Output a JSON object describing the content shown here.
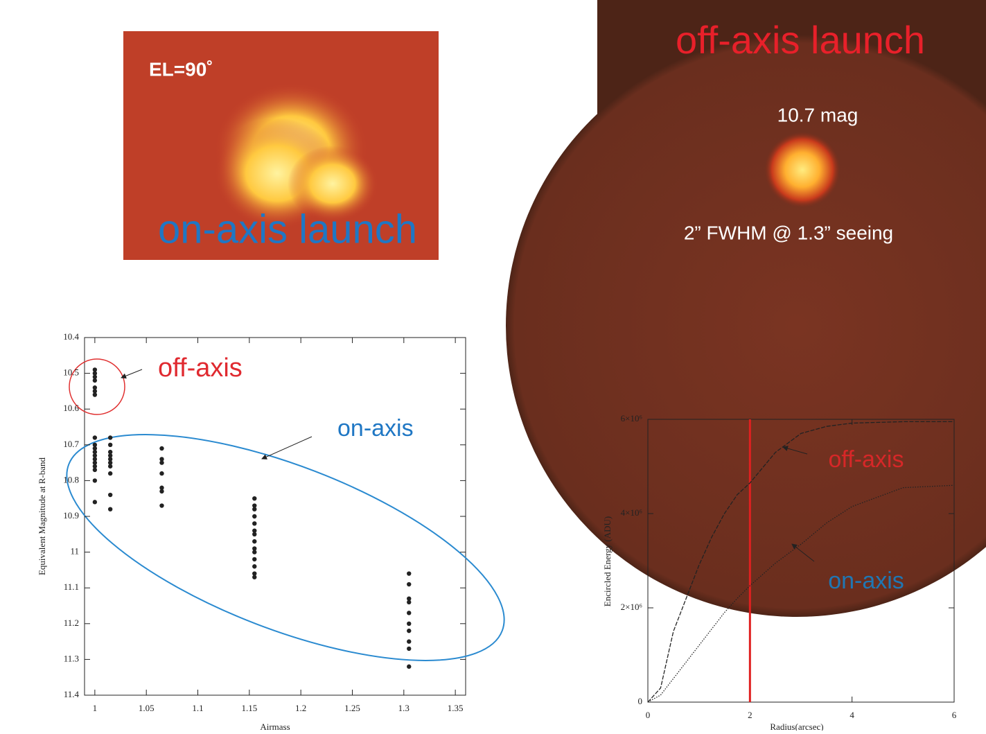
{
  "slide": {
    "image_left": {
      "label": "EL=90˚",
      "caption": "on-axis launch"
    },
    "image_right": {
      "caption": "off-axis launch",
      "magnitude": "10.7 mag",
      "fwhm": "2” FWHM @ 1.3” seeing"
    }
  },
  "chart_data": [
    {
      "type": "scatter",
      "x_label": "Airmass",
      "y_label": "Equivalent Magnitude at R-band",
      "color": "#222222",
      "annotations": [
        "off-axis",
        "on-axis"
      ],
      "x": [
        1,
        1,
        1,
        1,
        1,
        1,
        1,
        1,
        1,
        1,
        1,
        1,
        1,
        1,
        1,
        1,
        1,
        1,
        1.015,
        1.015,
        1.015,
        1.015,
        1.015,
        1.015,
        1.015,
        1.015,
        1.015,
        1.015,
        1.065,
        1.065,
        1.065,
        1.065,
        1.065,
        1.065,
        1.065,
        1.155,
        1.155,
        1.155,
        1.155,
        1.155,
        1.155,
        1.155,
        1.155,
        1.155,
        1.155,
        1.155,
        1.155,
        1.155,
        1.155,
        1.305,
        1.305,
        1.305,
        1.305,
        1.305,
        1.305,
        1.305,
        1.305,
        1.305,
        1.305
      ],
      "values": [
        10.49,
        10.5,
        10.51,
        10.52,
        10.54,
        10.55,
        10.56,
        10.68,
        10.7,
        10.71,
        10.72,
        10.73,
        10.74,
        10.75,
        10.76,
        10.77,
        10.8,
        10.86,
        10.68,
        10.7,
        10.72,
        10.73,
        10.74,
        10.75,
        10.76,
        10.78,
        10.84,
        10.88,
        10.71,
        10.74,
        10.75,
        10.78,
        10.82,
        10.83,
        10.87,
        10.85,
        10.87,
        10.88,
        10.9,
        10.92,
        10.94,
        10.95,
        10.97,
        10.99,
        11,
        11.02,
        11.04,
        11.06,
        11.07,
        11.06,
        11.09,
        11.13,
        11.14,
        11.17,
        11.2,
        11.22,
        11.25,
        11.27,
        11.32
      ],
      "xlim": [
        0.99,
        1.36
      ],
      "xticks": [
        1,
        1.05,
        1.1,
        1.15,
        1.2,
        1.25,
        1.3,
        1.35
      ],
      "ylim": [
        10.4,
        11.4
      ],
      "yticks": [
        10.4,
        10.5,
        10.6,
        10.7,
        10.8,
        10.9,
        11,
        11.1,
        11.2,
        11.3,
        11.4
      ],
      "y_inverted": true
    },
    {
      "type": "line",
      "x_label": "Radius(arcsec)",
      "y_label": "Encircled Energy (ADU)",
      "x": [
        0,
        0.25,
        0.5,
        0.75,
        1,
        1.25,
        1.5,
        1.75,
        2,
        2.5,
        3,
        3.5,
        4,
        5,
        6
      ],
      "series": [
        {
          "name": "off-axis",
          "color": "#d62728",
          "line_color": "#222222",
          "dash": "6 2",
          "values": [
            0,
            300000,
            1500000,
            2200000,
            2900000,
            3500000,
            4000000,
            4400000,
            4650000,
            5300000,
            5700000,
            5850000,
            5920000,
            5950000,
            5950000
          ]
        },
        {
          "name": "on-axis",
          "color": "#1f77b4",
          "line_color": "#222222",
          "dash": "1.5 2",
          "values": [
            0,
            150000,
            500000,
            850000,
            1200000,
            1550000,
            1900000,
            2200000,
            2470000,
            2950000,
            3350000,
            3800000,
            4150000,
            4550000,
            4600000
          ]
        }
      ],
      "vline": 2,
      "vline_color": "#e02020",
      "xlim": [
        0,
        6
      ],
      "xticks": [
        0,
        2,
        4,
        6
      ],
      "ylim": [
        0,
        6000000
      ],
      "yticks": [
        0,
        {
          "value": 2000000,
          "label": "2×10⁶"
        },
        {
          "value": 4000000,
          "label": "4×10⁶"
        },
        {
          "value": 6000000,
          "label": "6×10⁶"
        }
      ]
    }
  ]
}
